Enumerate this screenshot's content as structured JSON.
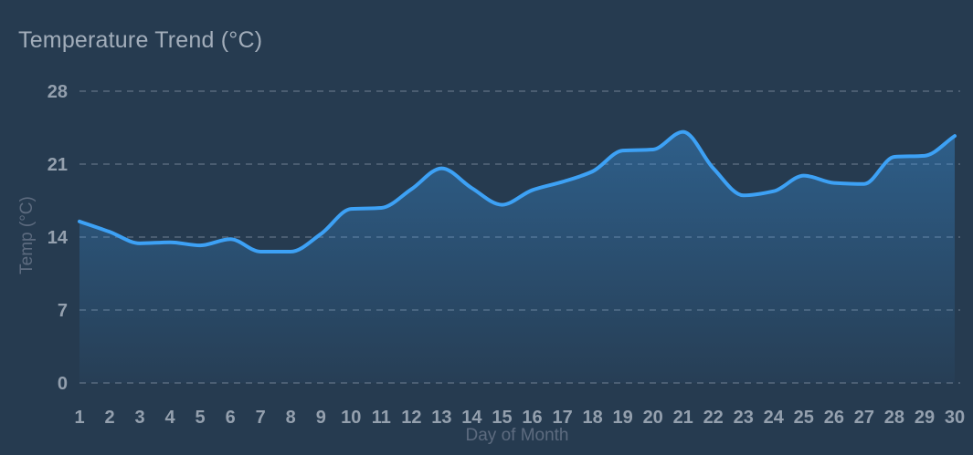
{
  "window": {
    "background": "#263b50"
  },
  "header": {
    "title": "Temperature Trend (°C)"
  },
  "chart_data": {
    "type": "area",
    "title": "Temperature Trend (°C)",
    "xlabel": "Day of Month",
    "ylabel": "Temp (°C)",
    "x": [
      1,
      2,
      3,
      4,
      5,
      6,
      7,
      8,
      9,
      10,
      11,
      12,
      13,
      14,
      15,
      16,
      17,
      18,
      19,
      20,
      21,
      22,
      23,
      24,
      25,
      26,
      27,
      28,
      29,
      30
    ],
    "values": [
      15.5,
      14.5,
      13.4,
      13.5,
      13.2,
      13.8,
      12.6,
      12.6,
      14.3,
      16.7,
      16.8,
      18.6,
      20.6,
      18.7,
      17.1,
      18.5,
      19.3,
      20.3,
      22.3,
      22.4,
      24.1,
      20.6,
      18.0,
      18.4,
      19.9,
      19.2,
      19.1,
      21.7,
      21.8,
      23.7
    ],
    "ylim": [
      0,
      28
    ],
    "yticks": [
      0,
      7,
      14,
      21,
      28
    ],
    "xticks": [
      1,
      2,
      3,
      4,
      5,
      6,
      7,
      8,
      9,
      10,
      11,
      12,
      13,
      14,
      15,
      16,
      17,
      18,
      19,
      20,
      21,
      22,
      23,
      24,
      25,
      26,
      27,
      28,
      29,
      30
    ],
    "grid": {
      "horizontal": true,
      "vertical": false,
      "style": "dashed"
    },
    "legend": "none",
    "smooth": true,
    "colors": {
      "background": "#263b50",
      "line": "#3da1f5",
      "area_top": "rgba(61,161,245,0.40)",
      "area_bottom": "rgba(61,161,245,0.03)",
      "grid": "rgba(195,205,220,0.24)",
      "title_text": "#a2adba",
      "tick_text": "#94a0ae",
      "axis_title_text": "#5d6b7f"
    }
  }
}
